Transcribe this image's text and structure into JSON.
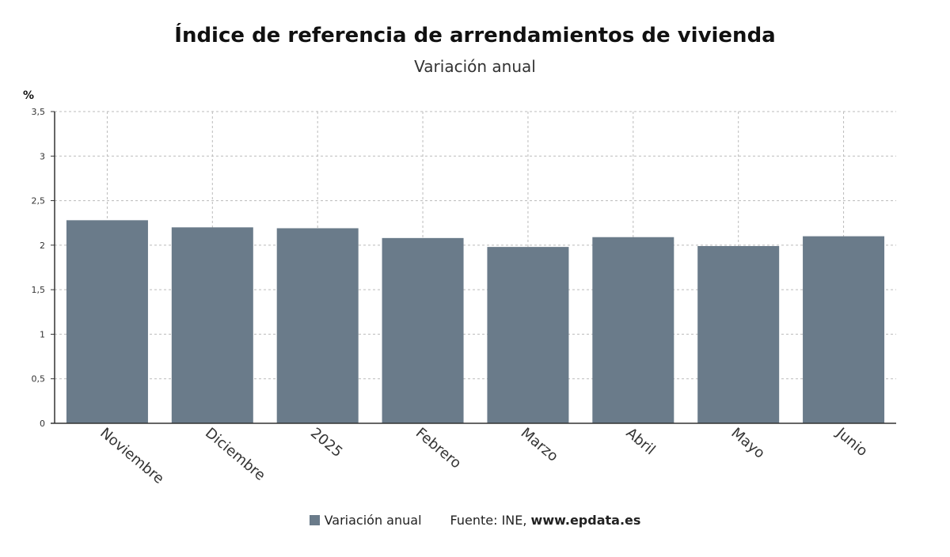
{
  "chart_data": {
    "type": "bar",
    "title": "Índice de referencia de arrendamientos de vivienda",
    "subtitle": "Variación anual",
    "ylabel": "%",
    "xlabel": "",
    "categories": [
      "Noviembre",
      "Diciembre",
      "2025",
      "Febrero",
      "Marzo",
      "Abril",
      "Mayo",
      "Junio"
    ],
    "series": [
      {
        "name": "Variación anual",
        "values": [
          2.28,
          2.2,
          2.19,
          2.08,
          1.98,
          2.09,
          1.99,
          2.1
        ]
      }
    ],
    "ylim": [
      0,
      3.5
    ],
    "yticks": [
      "0",
      "0,5",
      "1",
      "1,5",
      "2",
      "2,5",
      "3",
      "3,5"
    ],
    "grid": true,
    "legend_position": "bottom",
    "colors": {
      "bar": "#6a7b8a",
      "grid": "#bbbbbb",
      "axis": "#333333"
    }
  },
  "footer": {
    "legend_label": "Variación anual",
    "source_prefix": "Fuente: INE,",
    "source_site": "www.epdata.es"
  }
}
